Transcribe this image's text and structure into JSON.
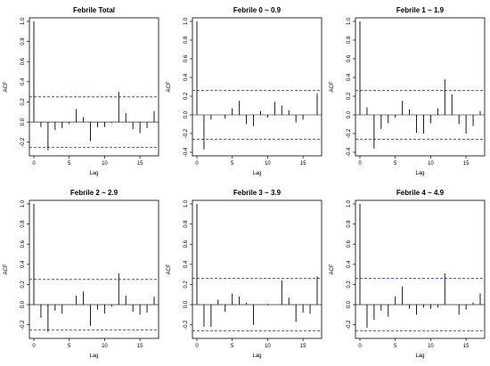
{
  "chart_data": [
    {
      "type": "bar",
      "title": "Febrile Total",
      "xlabel": "Lag",
      "ylabel": "ACF",
      "xlim": [
        0,
        17
      ],
      "ylim": [
        -0.3,
        1.0
      ],
      "yticks": [
        -0.2,
        0.0,
        0.2,
        0.4,
        0.6,
        0.8,
        1.0
      ],
      "xticks": [
        0,
        5,
        10,
        15
      ],
      "ci": 0.25,
      "lags": [
        0,
        1,
        2,
        3,
        4,
        5,
        6,
        7,
        8,
        9,
        10,
        11,
        12,
        13,
        14,
        15,
        16,
        17
      ],
      "values": [
        1.0,
        -0.05,
        -0.28,
        -0.08,
        -0.06,
        -0.02,
        0.13,
        0.05,
        -0.19,
        -0.05,
        -0.05,
        -0.01,
        0.3,
        0.09,
        -0.07,
        -0.11,
        -0.06,
        0.11
      ]
    },
    {
      "type": "bar",
      "title": "Febrile 0 ~ 0.9",
      "xlabel": "Lag",
      "ylabel": "ACF",
      "xlim": [
        0,
        17
      ],
      "ylim": [
        -0.4,
        1.0
      ],
      "yticks": [
        -0.4,
        -0.2,
        0.0,
        0.2,
        0.4,
        0.6,
        0.8,
        1.0
      ],
      "xticks": [
        0,
        5,
        10,
        15
      ],
      "ci": 0.26,
      "lags": [
        0,
        1,
        2,
        3,
        4,
        5,
        6,
        7,
        8,
        9,
        10,
        11,
        12,
        13,
        14,
        15,
        16,
        17
      ],
      "values": [
        1.0,
        -0.37,
        -0.05,
        0.0,
        -0.04,
        0.07,
        0.15,
        -0.1,
        -0.12,
        0.04,
        -0.03,
        0.14,
        0.1,
        0.05,
        -0.08,
        -0.05,
        0.0,
        0.23
      ]
    },
    {
      "type": "bar",
      "title": "Febrile 1 ~ 1.9",
      "xlabel": "Lag",
      "ylabel": "ACF",
      "xlim": [
        0,
        17
      ],
      "ylim": [
        -0.4,
        1.0
      ],
      "yticks": [
        -0.4,
        -0.2,
        0.0,
        0.2,
        0.4,
        0.6,
        0.8,
        1.0
      ],
      "xticks": [
        0,
        5,
        10,
        15
      ],
      "ci": 0.26,
      "lags": [
        0,
        1,
        2,
        3,
        4,
        5,
        6,
        7,
        8,
        9,
        10,
        11,
        12,
        13,
        14,
        15,
        16,
        17
      ],
      "values": [
        1.0,
        0.08,
        -0.36,
        -0.15,
        -0.09,
        -0.03,
        0.15,
        0.06,
        -0.19,
        -0.2,
        -0.09,
        0.07,
        0.38,
        0.22,
        -0.1,
        -0.2,
        -0.12,
        0.04
      ]
    },
    {
      "type": "bar",
      "title": "Febrile 2 ~ 2.9",
      "xlabel": "Lag",
      "ylabel": "ACF",
      "xlim": [
        0,
        17
      ],
      "ylim": [
        -0.3,
        1.0
      ],
      "yticks": [
        -0.2,
        0.0,
        0.2,
        0.4,
        0.6,
        0.8,
        1.0
      ],
      "xticks": [
        0,
        5,
        10,
        15
      ],
      "ci": 0.25,
      "lags": [
        0,
        1,
        2,
        3,
        4,
        5,
        6,
        7,
        8,
        9,
        10,
        11,
        12,
        13,
        14,
        15,
        16,
        17
      ],
      "values": [
        1.0,
        -0.13,
        -0.27,
        -0.06,
        -0.09,
        0.0,
        0.09,
        0.13,
        -0.21,
        -0.05,
        -0.09,
        -0.02,
        0.31,
        0.09,
        -0.07,
        -0.1,
        -0.08,
        0.08
      ]
    },
    {
      "type": "bar",
      "title": "Febrile 3 ~ 3.9",
      "xlabel": "Lag",
      "ylabel": "ACF",
      "xlim": [
        0,
        17
      ],
      "ylim": [
        -0.3,
        1.0
      ],
      "yticks": [
        -0.2,
        0.0,
        0.2,
        0.4,
        0.6,
        0.8,
        1.0
      ],
      "xticks": [
        0,
        5,
        10,
        15
      ],
      "ci": 0.26,
      "lags": [
        0,
        1,
        2,
        3,
        4,
        5,
        6,
        7,
        8,
        9,
        10,
        11,
        12,
        13,
        14,
        15,
        16,
        17
      ],
      "values": [
        1.0,
        -0.22,
        -0.22,
        0.05,
        -0.07,
        0.11,
        0.08,
        0.02,
        -0.2,
        0.0,
        0.01,
        0.0,
        0.24,
        0.07,
        -0.17,
        -0.08,
        -0.09,
        0.28
      ]
    },
    {
      "type": "bar",
      "title": "Febrile 4 ~ 4.9",
      "xlabel": "Lag",
      "ylabel": "ACF",
      "xlim": [
        0,
        17
      ],
      "ylim": [
        -0.3,
        1.0
      ],
      "yticks": [
        -0.2,
        0.0,
        0.2,
        0.4,
        0.6,
        0.8,
        1.0
      ],
      "xticks": [
        0,
        5,
        10,
        15
      ],
      "ci": 0.26,
      "lags": [
        0,
        1,
        2,
        3,
        4,
        5,
        6,
        7,
        8,
        9,
        10,
        11,
        12,
        13,
        14,
        15,
        16,
        17
      ],
      "values": [
        1.0,
        -0.23,
        -0.15,
        -0.06,
        -0.12,
        0.08,
        0.18,
        -0.04,
        -0.1,
        -0.03,
        -0.04,
        -0.03,
        0.31,
        0.0,
        -0.1,
        -0.05,
        0.02,
        0.11
      ]
    }
  ]
}
